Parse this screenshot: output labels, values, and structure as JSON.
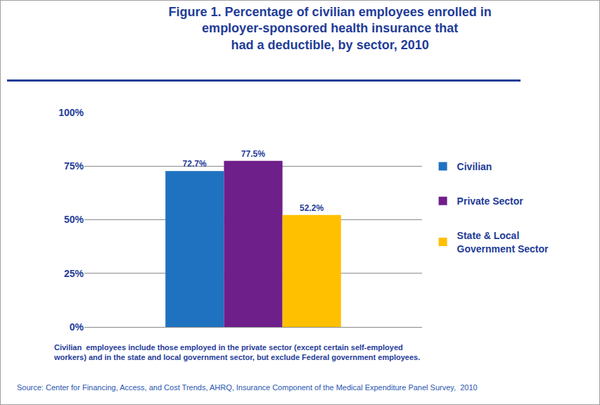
{
  "chart_data": {
    "type": "bar",
    "title": "Figure 1. Percentage of civilian employees enrolled in\nemployer-sponsored health insurance that\nhad a deductible, by sector, 2010",
    "categories": [
      null
    ],
    "series": [
      {
        "name": "Civilian",
        "color": "#1f72c0",
        "values": [
          72.7
        ],
        "value_labels": [
          "72.7%"
        ]
      },
      {
        "name": "Private Sector",
        "color": "#6e1f8a",
        "values": [
          77.5
        ],
        "value_labels": [
          "77.5%"
        ]
      },
      {
        "name": "State & Local\nGovernment Sector",
        "color": "#ffc000",
        "values": [
          52.2
        ],
        "value_labels": [
          "52.2%"
        ]
      }
    ],
    "ylim": [
      0,
      100
    ],
    "yticks": [
      {
        "value": 0,
        "label": "0%"
      },
      {
        "value": 25,
        "label": "25%"
      },
      {
        "value": 50,
        "label": "50%"
      },
      {
        "value": 75,
        "label": "75%"
      },
      {
        "value": 100,
        "label": "100%"
      }
    ],
    "grid": true,
    "legend": "right",
    "data_labels": true,
    "tick_labels": "y",
    "annotations": [
      "Civilian  employees include those employed in the private sector (except certain self-employed\nworkers) and in the state and local government sector, but exclude Federal government employees.",
      "Source: Center for Financing, Access, and Cost Trends, AHRQ, Insurance Component of the Medical Expenditure Panel Survey,  2010"
    ]
  }
}
